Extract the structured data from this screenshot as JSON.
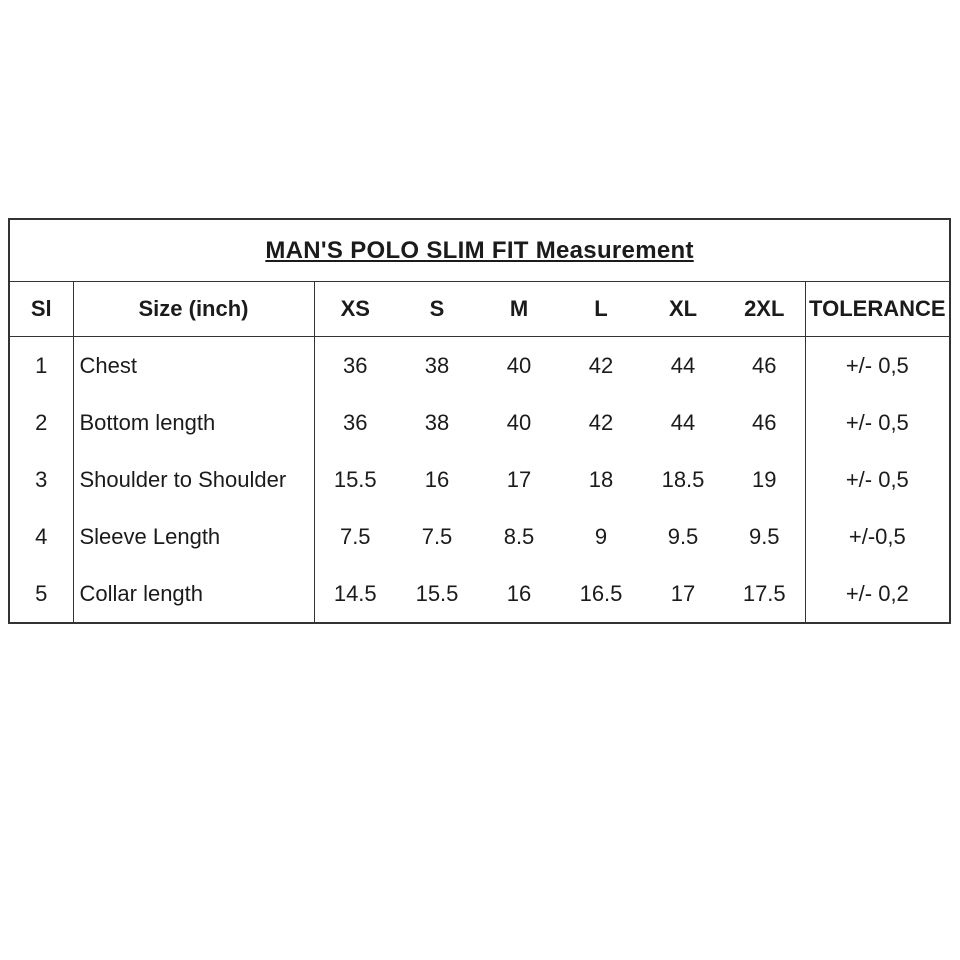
{
  "page": {
    "background_color": "#ffffff",
    "text_color": "#1b1b1b",
    "border_color": "#333333"
  },
  "table": {
    "title": "MAN'S POLO SLIM FIT Measurement",
    "headers": [
      "Sl",
      "Size (inch)",
      "XS",
      "S",
      "M",
      "L",
      "XL",
      "2XL",
      "TOLERANCE"
    ],
    "rows": [
      {
        "sl": "1",
        "label": "Chest",
        "values": [
          "36",
          "38",
          "40",
          "42",
          "44",
          "46"
        ],
        "tolerance": "+/- 0,5"
      },
      {
        "sl": "2",
        "label": "Bottom length",
        "values": [
          "36",
          "38",
          "40",
          "42",
          "44",
          "46"
        ],
        "tolerance": "+/- 0,5"
      },
      {
        "sl": "3",
        "label": "Shoulder to Shoulder",
        "values": [
          "15.5",
          "16",
          "17",
          "18",
          "18.5",
          "19"
        ],
        "tolerance": "+/- 0,5"
      },
      {
        "sl": "4",
        "label": "Sleeve Length",
        "values": [
          "7.5",
          "7.5",
          "8.5",
          "9",
          "9.5",
          "9.5"
        ],
        "tolerance": "+/-0,5"
      },
      {
        "sl": "5",
        "label": "Collar length",
        "values": [
          "14.5",
          "15.5",
          "16",
          "16.5",
          "17",
          "17.5"
        ],
        "tolerance": "+/- 0,2"
      }
    ]
  }
}
